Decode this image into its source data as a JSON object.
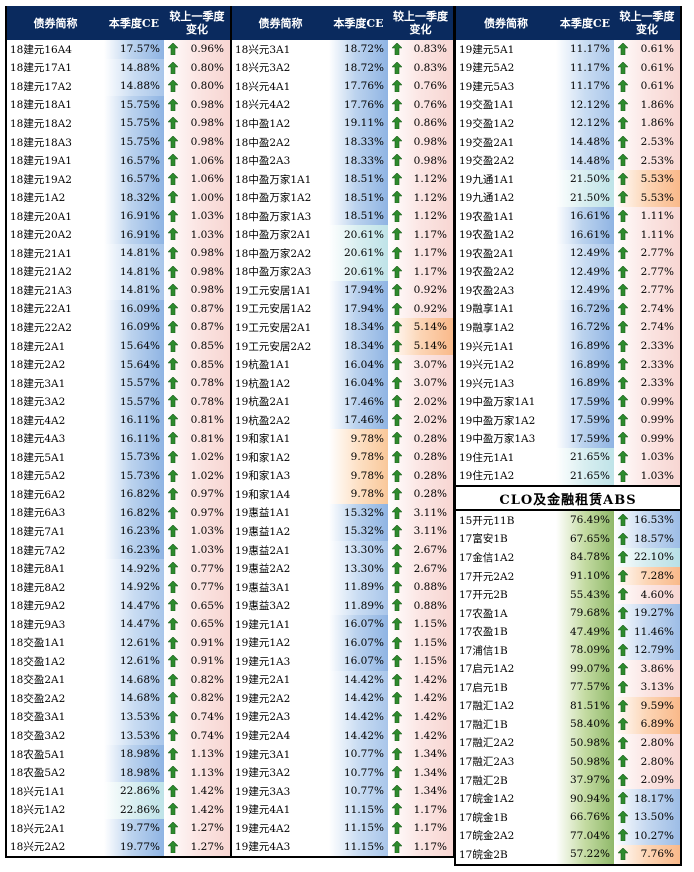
{
  "headers": {
    "name": "债券简称",
    "ce": "本季度CE",
    "change_line1": "较上一季度",
    "change_line2": "变化"
  },
  "clo_section_title": "CLO及金融租赁ABS",
  "colors": {
    "header_bg": "#0a2a5e",
    "up_arrow": "#2e8b2e"
  },
  "icon": "up-arrow-icon",
  "columns": [
    [
      [
        "18建元16A4",
        "17.57%",
        "0.96%"
      ],
      [
        "18建元17A1",
        "14.88%",
        "0.80%"
      ],
      [
        "18建元17A2",
        "14.88%",
        "0.80%"
      ],
      [
        "18建元18A1",
        "15.75%",
        "0.98%"
      ],
      [
        "18建元18A2",
        "15.75%",
        "0.98%"
      ],
      [
        "18建元18A3",
        "15.75%",
        "0.98%"
      ],
      [
        "18建元19A1",
        "16.57%",
        "1.06%"
      ],
      [
        "18建元19A2",
        "16.57%",
        "1.06%"
      ],
      [
        "18建元1A2",
        "18.32%",
        "1.00%"
      ],
      [
        "18建元20A1",
        "16.91%",
        "1.03%"
      ],
      [
        "18建元20A2",
        "16.91%",
        "1.03%"
      ],
      [
        "18建元21A1",
        "14.81%",
        "0.98%"
      ],
      [
        "18建元21A2",
        "14.81%",
        "0.98%"
      ],
      [
        "18建元21A3",
        "14.81%",
        "0.98%"
      ],
      [
        "18建元22A1",
        "16.09%",
        "0.87%"
      ],
      [
        "18建元22A2",
        "16.09%",
        "0.87%"
      ],
      [
        "18建元2A1",
        "15.64%",
        "0.85%"
      ],
      [
        "18建元2A2",
        "15.64%",
        "0.85%"
      ],
      [
        "18建元3A1",
        "15.57%",
        "0.78%"
      ],
      [
        "18建元3A2",
        "15.57%",
        "0.78%"
      ],
      [
        "18建元4A2",
        "16.11%",
        "0.81%"
      ],
      [
        "18建元4A3",
        "16.11%",
        "0.81%"
      ],
      [
        "18建元5A1",
        "15.73%",
        "1.02%"
      ],
      [
        "18建元5A2",
        "15.73%",
        "1.02%"
      ],
      [
        "18建元6A2",
        "16.82%",
        "0.97%"
      ],
      [
        "18建元6A3",
        "16.82%",
        "0.97%"
      ],
      [
        "18建元7A1",
        "16.23%",
        "1.03%"
      ],
      [
        "18建元7A2",
        "16.23%",
        "1.03%"
      ],
      [
        "18建元8A1",
        "14.92%",
        "0.77%"
      ],
      [
        "18建元8A2",
        "14.92%",
        "0.77%"
      ],
      [
        "18建元9A2",
        "14.47%",
        "0.65%"
      ],
      [
        "18建元9A3",
        "14.47%",
        "0.65%"
      ],
      [
        "18交盈1A1",
        "12.61%",
        "0.91%"
      ],
      [
        "18交盈1A2",
        "12.61%",
        "0.91%"
      ],
      [
        "18交盈2A1",
        "14.68%",
        "0.82%"
      ],
      [
        "18交盈2A2",
        "14.68%",
        "0.82%"
      ],
      [
        "18交盈3A1",
        "13.53%",
        "0.74%"
      ],
      [
        "18交盈3A2",
        "13.53%",
        "0.74%"
      ],
      [
        "18农盈5A1",
        "18.98%",
        "1.13%"
      ],
      [
        "18农盈5A2",
        "18.98%",
        "1.13%"
      ],
      [
        "18兴元1A1",
        "22.86%",
        "1.42%"
      ],
      [
        "18兴元1A2",
        "22.86%",
        "1.42%"
      ],
      [
        "18兴元2A1",
        "19.77%",
        "1.27%"
      ],
      [
        "18兴元2A2",
        "19.77%",
        "1.27%"
      ]
    ],
    [
      [
        "18兴元3A1",
        "18.72%",
        "0.83%"
      ],
      [
        "18兴元3A2",
        "18.72%",
        "0.83%"
      ],
      [
        "18兴元4A1",
        "17.76%",
        "0.76%"
      ],
      [
        "18兴元4A2",
        "17.76%",
        "0.76%"
      ],
      [
        "18中盈1A2",
        "19.11%",
        "0.86%"
      ],
      [
        "18中盈2A2",
        "18.33%",
        "0.98%"
      ],
      [
        "18中盈2A3",
        "18.33%",
        "0.98%"
      ],
      [
        "18中盈万家1A1",
        "18.51%",
        "1.12%"
      ],
      [
        "18中盈万家1A2",
        "18.51%",
        "1.12%"
      ],
      [
        "18中盈万家1A3",
        "18.51%",
        "1.12%"
      ],
      [
        "18中盈万家2A1",
        "20.61%",
        "1.17%"
      ],
      [
        "18中盈万家2A2",
        "20.61%",
        "1.17%"
      ],
      [
        "18中盈万家2A3",
        "20.61%",
        "1.17%"
      ],
      [
        "19工元安居1A1",
        "17.94%",
        "0.92%"
      ],
      [
        "19工元安居1A2",
        "17.94%",
        "0.92%"
      ],
      [
        "19工元安居2A1",
        "18.34%",
        "5.14%"
      ],
      [
        "19工元安居2A2",
        "18.34%",
        "5.14%"
      ],
      [
        "19杭盈1A1",
        "16.04%",
        "3.07%"
      ],
      [
        "19杭盈1A2",
        "16.04%",
        "3.07%"
      ],
      [
        "19杭盈2A1",
        "17.46%",
        "2.02%"
      ],
      [
        "19杭盈2A2",
        "17.46%",
        "2.02%"
      ],
      [
        "19和家1A1",
        "9.78%",
        "0.28%"
      ],
      [
        "19和家1A2",
        "9.78%",
        "0.28%"
      ],
      [
        "19和家1A3",
        "9.78%",
        "0.28%"
      ],
      [
        "19和家1A4",
        "9.78%",
        "0.28%"
      ],
      [
        "19惠益1A1",
        "15.32%",
        "3.11%"
      ],
      [
        "19惠益1A2",
        "15.32%",
        "3.11%"
      ],
      [
        "19惠益2A1",
        "13.30%",
        "2.67%"
      ],
      [
        "19惠益2A2",
        "13.30%",
        "2.67%"
      ],
      [
        "19惠益3A1",
        "11.89%",
        "0.88%"
      ],
      [
        "19惠益3A2",
        "11.89%",
        "0.88%"
      ],
      [
        "19建元1A1",
        "16.07%",
        "1.15%"
      ],
      [
        "19建元1A2",
        "16.07%",
        "1.15%"
      ],
      [
        "19建元1A3",
        "16.07%",
        "1.15%"
      ],
      [
        "19建元2A1",
        "14.42%",
        "1.42%"
      ],
      [
        "19建元2A2",
        "14.42%",
        "1.42%"
      ],
      [
        "19建元2A3",
        "14.42%",
        "1.42%"
      ],
      [
        "19建元2A4",
        "14.42%",
        "1.42%"
      ],
      [
        "19建元3A1",
        "10.77%",
        "1.34%"
      ],
      [
        "19建元3A2",
        "10.77%",
        "1.34%"
      ],
      [
        "19建元3A3",
        "10.77%",
        "1.34%"
      ],
      [
        "19建元4A1",
        "11.15%",
        "1.17%"
      ],
      [
        "19建元4A2",
        "11.15%",
        "1.17%"
      ],
      [
        "19建元4A3",
        "11.15%",
        "1.17%"
      ]
    ],
    [
      [
        "19建元5A1",
        "11.17%",
        "0.61%"
      ],
      [
        "19建元5A2",
        "11.17%",
        "0.61%"
      ],
      [
        "19建元5A3",
        "11.17%",
        "0.61%"
      ],
      [
        "19交盈1A1",
        "12.12%",
        "1.86%"
      ],
      [
        "19交盈1A2",
        "12.12%",
        "1.86%"
      ],
      [
        "19交盈2A1",
        "14.48%",
        "2.53%"
      ],
      [
        "19交盈2A2",
        "14.48%",
        "2.53%"
      ],
      [
        "19九通1A1",
        "21.50%",
        "5.53%"
      ],
      [
        "19九通1A2",
        "21.50%",
        "5.53%"
      ],
      [
        "19农盈1A1",
        "16.61%",
        "1.11%"
      ],
      [
        "19农盈1A2",
        "16.61%",
        "1.11%"
      ],
      [
        "19农盈2A1",
        "12.49%",
        "2.77%"
      ],
      [
        "19农盈2A2",
        "12.49%",
        "2.77%"
      ],
      [
        "19农盈2A3",
        "12.49%",
        "2.77%"
      ],
      [
        "19融享1A1",
        "16.72%",
        "2.74%"
      ],
      [
        "19融享1A2",
        "16.72%",
        "2.74%"
      ],
      [
        "19兴元1A1",
        "16.89%",
        "2.33%"
      ],
      [
        "19兴元1A2",
        "16.89%",
        "2.33%"
      ],
      [
        "19兴元1A3",
        "16.89%",
        "2.33%"
      ],
      [
        "19中盈万家1A1",
        "17.59%",
        "0.99%"
      ],
      [
        "19中盈万家1A2",
        "17.59%",
        "0.99%"
      ],
      [
        "19中盈万家1A3",
        "17.59%",
        "0.99%"
      ],
      [
        "19住元1A1",
        "21.65%",
        "1.03%"
      ],
      [
        "19住元1A2",
        "21.65%",
        "1.03%"
      ]
    ]
  ],
  "clo_rows": [
    [
      "15开元11B",
      "76.49%",
      "16.53%"
    ],
    [
      "17富安1B",
      "67.65%",
      "18.57%"
    ],
    [
      "17金信1A2",
      "84.78%",
      "22.10%"
    ],
    [
      "17开元2A2",
      "91.10%",
      "7.28%"
    ],
    [
      "17开元2B",
      "55.43%",
      "4.60%"
    ],
    [
      "17农盈1A",
      "79.68%",
      "19.27%"
    ],
    [
      "17农盈1B",
      "47.49%",
      "11.46%"
    ],
    [
      "17浦信1B",
      "78.09%",
      "12.79%"
    ],
    [
      "17启元1A2",
      "99.07%",
      "3.86%"
    ],
    [
      "17启元1B",
      "77.57%",
      "3.13%"
    ],
    [
      "17融汇1A2",
      "81.51%",
      "9.59%"
    ],
    [
      "17融汇1B",
      "58.40%",
      "6.89%"
    ],
    [
      "17融汇2A2",
      "50.98%",
      "2.80%"
    ],
    [
      "17融汇2A3",
      "50.98%",
      "2.80%"
    ],
    [
      "17融汇2B",
      "37.97%",
      "2.09%"
    ],
    [
      "17皖金1A2",
      "90.94%",
      "18.17%"
    ],
    [
      "17皖金1B",
      "66.76%",
      "13.50%"
    ],
    [
      "17皖金2A2",
      "77.04%",
      "10.27%"
    ],
    [
      "17皖金2B",
      "57.22%",
      "7.76%"
    ]
  ]
}
